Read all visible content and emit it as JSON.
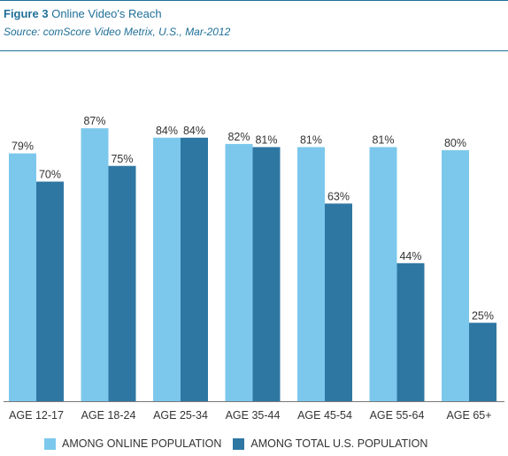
{
  "header": {
    "figure_label": "Figure 3",
    "title": "Online Video's Reach",
    "source": "Source: comScore Video Metrix, U.S., Mar-2012"
  },
  "colors": {
    "online": "#7cc8ec",
    "total": "#2e77a3",
    "rule": "#1f6f98",
    "axis": "#777777"
  },
  "legend": {
    "online": "AMONG ONLINE POPULATION",
    "total": "AMONG TOTAL U.S. POPULATION"
  },
  "chart_data": {
    "type": "bar",
    "categories": [
      "AGE 12-17",
      "AGE 18-24",
      "AGE 25-34",
      "AGE 35-44",
      "AGE 45-54",
      "AGE 55-64",
      "AGE 65+"
    ],
    "series": [
      {
        "name": "AMONG ONLINE POPULATION",
        "values": [
          79,
          87,
          84,
          82,
          81,
          81,
          80
        ],
        "labels": [
          "79%",
          "87%",
          "84%",
          "82%",
          "81%",
          "81%",
          "80%"
        ]
      },
      {
        "name": "AMONG TOTAL U.S. POPULATION",
        "values": [
          70,
          75,
          84,
          81,
          63,
          44,
          25
        ],
        "labels": [
          "70%",
          "75%",
          "84%",
          "81%",
          "63%",
          "44%",
          "25%"
        ]
      }
    ],
    "title": "Online Video's Reach",
    "xlabel": "",
    "ylabel": "",
    "ylim": [
      0,
      100
    ],
    "legend_position": "bottom",
    "grid": false
  }
}
